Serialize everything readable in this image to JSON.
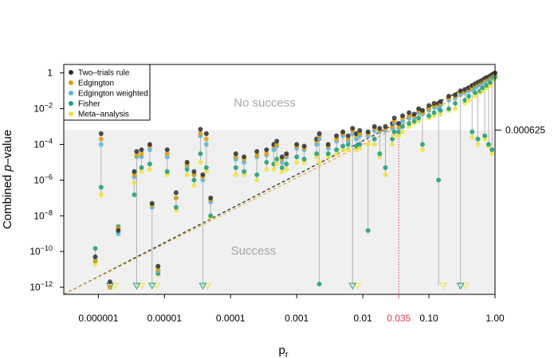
{
  "chart_data": {
    "type": "scatter",
    "xlabel": "p",
    "xlabel_sub": "r",
    "ylabel_prefix": "Combined ",
    "ylabel_italic": "p",
    "ylabel_suffix": "–value",
    "x_scale": "log",
    "y_scale": "log",
    "xlim": [
      3e-07,
      1
    ],
    "ylim": [
      4e-13,
      3
    ],
    "x_ticks": [
      {
        "value": 1e-06,
        "label": "0.000001"
      },
      {
        "value": 1e-05,
        "label": "0.00001"
      },
      {
        "value": 0.0001,
        "label": "0.0001"
      },
      {
        "value": 0.001,
        "label": "0.001"
      },
      {
        "value": 0.01,
        "label": "0.01"
      },
      {
        "value": 0.1,
        "label": "0.10"
      },
      {
        "value": 1,
        "label": "1.00"
      }
    ],
    "x_special_tick": {
      "value": 0.035,
      "label": "0.035",
      "color": "#e8384f"
    },
    "y_ticks": [
      {
        "value": 1,
        "base": "1",
        "exp": ""
      },
      {
        "value": 0.01,
        "base": "10",
        "exp": "−2"
      },
      {
        "value": 0.0001,
        "base": "10",
        "exp": "−4"
      },
      {
        "value": 1e-06,
        "base": "10",
        "exp": "−6"
      },
      {
        "value": 1e-08,
        "base": "10",
        "exp": "−8"
      },
      {
        "value": 1e-10,
        "base": "10",
        "exp": "−10"
      },
      {
        "value": 1e-12,
        "base": "10",
        "exp": "−12"
      }
    ],
    "threshold": {
      "value": 0.000625,
      "label": "0.000625"
    },
    "region_labels": {
      "above": "No success",
      "below": "Success"
    },
    "legend_position": "top-left",
    "grid": false,
    "reference_lines": [
      {
        "name": "Two–trials rule",
        "slope": 2,
        "color": "#222222",
        "style": "dashed"
      },
      {
        "name": "Edgington",
        "slope": 2,
        "color": "#e8a33a",
        "style": "dashed",
        "scale": 0.5
      }
    ],
    "series": [
      {
        "name": "Two–trials rule",
        "color": "#2b2f36"
      },
      {
        "name": "Edgington",
        "color": "#e69f00"
      },
      {
        "name": "Edgington weighted",
        "color": "#56b4e9"
      },
      {
        "name": "Fisher",
        "color": "#1f9e74"
      },
      {
        "name": "Meta–analysis",
        "color": "#f0e442"
      }
    ],
    "studies": [
      {
        "x": 9e-07,
        "values": [
          5e-11,
          3e-11,
          3e-11,
          1.5e-10,
          2e-11
        ]
      },
      {
        "x": 1.1e-06,
        "values": [
          0.0004,
          0.0002,
          0.0001,
          4e-07,
          1.5e-07
        ]
      },
      {
        "x": 1.5e-06,
        "values": [
          2e-12,
          1e-12,
          1e-12,
          null,
          null
        ],
        "censored": [
          false,
          false,
          false,
          true,
          true
        ]
      },
      {
        "x": 2e-06,
        "values": [
          1.5e-09,
          2e-09,
          1e-09,
          2.5e-09,
          1e-09
        ]
      },
      {
        "x": 3.5e-06,
        "values": [
          3e-06,
          2e-06,
          1.5e-06,
          1.5e-07,
          7e-07
        ]
      },
      {
        "x": 3.8e-06,
        "values": [
          4e-05,
          2.5e-05,
          2e-05,
          null,
          null
        ],
        "censored": [
          false,
          false,
          false,
          true,
          true
        ]
      },
      {
        "x": 4.5e-06,
        "values": [
          5e-05,
          3e-05,
          2e-05,
          5e-06,
          3e-06
        ]
      },
      {
        "x": 6e-06,
        "values": [
          0.0001,
          8e-05,
          5e-05,
          8e-06,
          4e-06
        ]
      },
      {
        "x": 6.5e-06,
        "values": [
          5e-08,
          4e-08,
          3e-08,
          null,
          null
        ],
        "censored": [
          false,
          false,
          false,
          true,
          true
        ]
      },
      {
        "x": 8e-06,
        "values": [
          1.5e-11,
          1e-11,
          8e-12,
          6e-12,
          5e-12
        ]
      },
      {
        "x": 1.1e-05,
        "values": [
          5e-05,
          3e-05,
          2e-05,
          3e-06,
          2e-06
        ]
      },
      {
        "x": 1.5e-05,
        "values": [
          2e-07,
          1e-07,
          1e-07,
          3e-08,
          2e-08
        ]
      },
      {
        "x": 2.2e-05,
        "values": [
          1e-05,
          7e-06,
          6e-06,
          4e-06,
          2e-06
        ]
      },
      {
        "x": 2.8e-05,
        "values": [
          3e-06,
          2e-06,
          2e-06,
          1e-06,
          5e-07
        ]
      },
      {
        "x": 3.5e-05,
        "values": [
          0.0007,
          0.0004,
          0.0003,
          3e-05,
          1e-05
        ]
      },
      {
        "x": 3.8e-05,
        "values": [
          2e-06,
          1.5e-06,
          1e-06,
          null,
          null
        ],
        "censored": [
          false,
          false,
          false,
          true,
          true
        ]
      },
      {
        "x": 4.3e-05,
        "values": [
          0.0004,
          0.0002,
          0.0001,
          5e-06,
          3e-06
        ]
      },
      {
        "x": 5e-05,
        "values": [
          1e-07,
          8e-08,
          6e-08,
          1e-08,
          8e-09
        ]
      },
      {
        "x": 0.00012,
        "values": [
          3e-05,
          2e-05,
          1.5e-05,
          5e-06,
          2e-06
        ]
      },
      {
        "x": 0.00016,
        "values": [
          2e-05,
          1.5e-05,
          1e-05,
          3e-06,
          2e-06
        ]
      },
      {
        "x": 0.00025,
        "values": [
          4e-05,
          2.5e-05,
          2e-05,
          2e-06,
          1e-06
        ]
      },
      {
        "x": 0.00035,
        "values": [
          5e-05,
          3e-05,
          2.5e-05,
          1e-05,
          4e-06
        ]
      },
      {
        "x": 0.00045,
        "values": [
          0.0001,
          8e-05,
          5e-05,
          8e-06,
          4e-06
        ]
      },
      {
        "x": 0.0005,
        "values": [
          0.00015,
          0.0001,
          8e-05,
          1.5e-05,
          8e-06
        ]
      },
      {
        "x": 0.0006,
        "values": [
          2e-05,
          1.5e-05,
          1e-05,
          5e-06,
          3e-06
        ]
      },
      {
        "x": 0.0007,
        "values": [
          3e-05,
          2.5e-05,
          2e-05,
          8e-06,
          4e-06
        ]
      },
      {
        "x": 0.001,
        "values": [
          0.0001,
          8e-05,
          6e-05,
          2e-05,
          1e-05
        ]
      },
      {
        "x": 0.0013,
        "values": [
          8e-05,
          6e-05,
          5e-05,
          1.5e-05,
          1e-05
        ]
      },
      {
        "x": 0.002,
        "values": [
          0.0002,
          0.00015,
          0.0001,
          3e-05,
          2e-05
        ]
      },
      {
        "x": 0.0022,
        "values": [
          0.0004,
          0.0003,
          0.0002,
          1.5e-12,
          1e-05
        ]
      },
      {
        "x": 0.003,
        "values": [
          0.0001,
          8e-05,
          6e-05,
          3e-05,
          2e-05
        ]
      },
      {
        "x": 0.004,
        "values": [
          0.0003,
          0.0002,
          0.00015,
          5e-05,
          3e-05
        ]
      },
      {
        "x": 0.005,
        "values": [
          0.0005,
          0.0004,
          0.0003,
          8e-05,
          5e-05
        ]
      },
      {
        "x": 0.006,
        "values": [
          0.0003,
          0.0002,
          0.00015,
          0.0001,
          5e-05
        ]
      },
      {
        "x": 0.007,
        "values": [
          0.0008,
          0.0006,
          0.0004,
          null,
          null
        ],
        "censored": [
          false,
          false,
          false,
          true,
          true
        ]
      },
      {
        "x": 0.008,
        "values": [
          0.0004,
          0.0003,
          0.0002,
          8e-05,
          5e-05
        ]
      },
      {
        "x": 0.009,
        "values": [
          0.0006,
          0.0004,
          0.0003,
          0.0001,
          6e-05
        ]
      },
      {
        "x": 0.012,
        "values": [
          0.0005,
          0.0004,
          0.0003,
          1.5e-09,
          0.0001
        ]
      },
      {
        "x": 0.015,
        "values": [
          0.001,
          0.0008,
          0.0006,
          0.0002,
          0.0001
        ]
      },
      {
        "x": 0.018,
        "values": [
          0.0008,
          0.0006,
          0.0005,
          3e-05,
          2e-05
        ]
      },
      {
        "x": 0.022,
        "values": [
          0.001,
          0.0008,
          0.0006,
          5e-06,
          2e-06
        ]
      },
      {
        "x": 0.028,
        "values": [
          0.0015,
          0.001,
          0.0008,
          0.0002,
          0.0001
        ]
      },
      {
        "x": 0.03,
        "values": [
          0.003,
          0.002,
          0.0015,
          0.0005,
          0.0003
        ]
      },
      {
        "x": 0.035,
        "values": [
          0.0015,
          0.001,
          0.0008,
          0.0005,
          0.0003
        ]
      },
      {
        "x": 0.04,
        "values": [
          0.004,
          0.003,
          0.002,
          0.001,
          0.0005
        ]
      },
      {
        "x": 0.05,
        "values": [
          0.006,
          0.004,
          0.003,
          0.0015,
          0.001
        ]
      },
      {
        "x": 0.06,
        "values": [
          0.005,
          0.004,
          0.003,
          0.002,
          0.0015
        ]
      },
      {
        "x": 0.07,
        "values": [
          0.01,
          0.008,
          0.006,
          0.003,
          0.002
        ]
      },
      {
        "x": 0.08,
        "values": [
          0.008,
          0.006,
          0.005,
          0.0001,
          5e-05
        ]
      },
      {
        "x": 0.1,
        "values": [
          0.015,
          0.01,
          0.008,
          0.004,
          0.003
        ]
      },
      {
        "x": 0.12,
        "values": [
          0.02,
          0.015,
          0.012,
          0.006,
          0.004
        ]
      },
      {
        "x": 0.14,
        "values": [
          0.02,
          0.015,
          0.01,
          1e-06,
          null
        ],
        "censored": [
          false,
          false,
          false,
          false,
          true
        ]
      },
      {
        "x": 0.15,
        "values": [
          0.025,
          0.02,
          0.015,
          0.008,
          0.005
        ]
      },
      {
        "x": 0.2,
        "values": [
          0.05,
          0.04,
          0.03,
          0.01,
          0.008
        ]
      },
      {
        "x": 0.25,
        "values": [
          0.06,
          0.05,
          0.04,
          0.02,
          0.01
        ]
      },
      {
        "x": 0.3,
        "values": [
          0.1,
          0.08,
          0.06,
          null,
          null
        ],
        "censored": [
          false,
          false,
          false,
          true,
          true
        ]
      },
      {
        "x": 0.35,
        "values": [
          0.12,
          0.1,
          0.08,
          0.03,
          0.02
        ]
      },
      {
        "x": 0.4,
        "values": [
          0.15,
          0.12,
          0.1,
          0.05,
          0.03
        ]
      },
      {
        "x": 0.45,
        "values": [
          0.2,
          0.15,
          0.12,
          0.0005,
          0.00025
        ]
      },
      {
        "x": 0.5,
        "values": [
          0.25,
          0.2,
          0.15,
          0.08,
          0.05
        ]
      },
      {
        "x": 0.55,
        "values": [
          0.3,
          0.25,
          0.2,
          0.0002,
          0.0001
        ]
      },
      {
        "x": 0.6,
        "values": [
          0.35,
          0.3,
          0.25,
          0.1,
          0.08
        ]
      },
      {
        "x": 0.65,
        "values": [
          0.4,
          0.35,
          0.3,
          0.15,
          0.1
        ]
      },
      {
        "x": 0.7,
        "values": [
          0.5,
          0.4,
          0.35,
          0.0003,
          0.0002
        ]
      },
      {
        "x": 0.75,
        "values": [
          0.55,
          0.45,
          0.4,
          0.2,
          0.15
        ]
      },
      {
        "x": 0.8,
        "values": [
          0.6,
          0.5,
          0.45,
          0.0001,
          8e-05
        ]
      },
      {
        "x": 0.85,
        "values": [
          0.7,
          0.6,
          0.5,
          0.3,
          0.2
        ]
      },
      {
        "x": 0.9,
        "values": [
          0.8,
          0.7,
          0.6,
          5e-05,
          3e-05
        ]
      },
      {
        "x": 0.95,
        "values": [
          0.9,
          0.8,
          0.7,
          0.5,
          0.4
        ]
      },
      {
        "x": 1,
        "values": [
          1,
          0.9,
          0.8,
          0.6,
          0.5
        ]
      }
    ]
  }
}
